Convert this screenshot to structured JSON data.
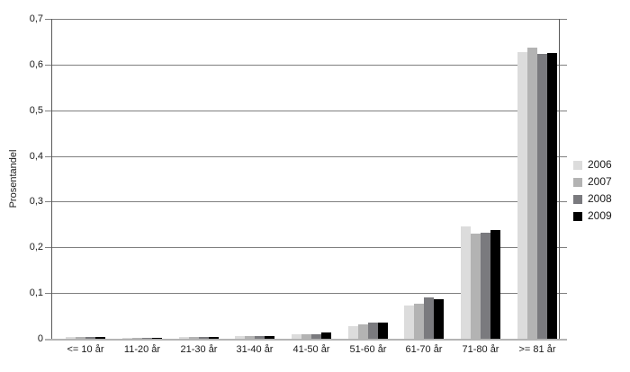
{
  "chart": {
    "background": "#ffffff",
    "colors": {
      "gridline": "#7f7f7f",
      "axis": "#595959",
      "baseline": "#b3b3b3",
      "text": "#1a1a1a"
    }
  },
  "chart_data": {
    "type": "bar",
    "title": "",
    "xlabel": "",
    "ylabel": "Prosentandel",
    "ylim": [
      0,
      0.7
    ],
    "grid": true,
    "legend_position": "right",
    "y_ticks": [
      {
        "value": 0.0,
        "label": "0"
      },
      {
        "value": 0.1,
        "label": "0,1"
      },
      {
        "value": 0.2,
        "label": "0,2"
      },
      {
        "value": 0.3,
        "label": "0,3"
      },
      {
        "value": 0.4,
        "label": "0,4"
      },
      {
        "value": 0.5,
        "label": "0,5"
      },
      {
        "value": 0.6,
        "label": "0,6"
      },
      {
        "value": 0.7,
        "label": "0,7"
      }
    ],
    "categories": [
      "<= 10 år",
      "11-20 år",
      "21-30 år",
      "31-40 år",
      "41-50 år",
      "51-60 år",
      "61-70 år",
      "71-80 år",
      ">= 81 år"
    ],
    "series": [
      {
        "name": "2006",
        "color": "#dcdcdc",
        "values": [
          0.004,
          0.002,
          0.003,
          0.005,
          0.009,
          0.028,
          0.072,
          0.245,
          0.627
        ]
      },
      {
        "name": "2007",
        "color": "#b3b3b3",
        "values": [
          0.004,
          0.002,
          0.003,
          0.005,
          0.01,
          0.032,
          0.076,
          0.23,
          0.638
        ]
      },
      {
        "name": "2008",
        "color": "#7a7a7e",
        "values": [
          0.004,
          0.002,
          0.004,
          0.005,
          0.01,
          0.036,
          0.09,
          0.232,
          0.623
        ]
      },
      {
        "name": "2009",
        "color": "#000000",
        "values": [
          0.003,
          0.002,
          0.004,
          0.006,
          0.013,
          0.036,
          0.086,
          0.237,
          0.625
        ]
      }
    ]
  }
}
